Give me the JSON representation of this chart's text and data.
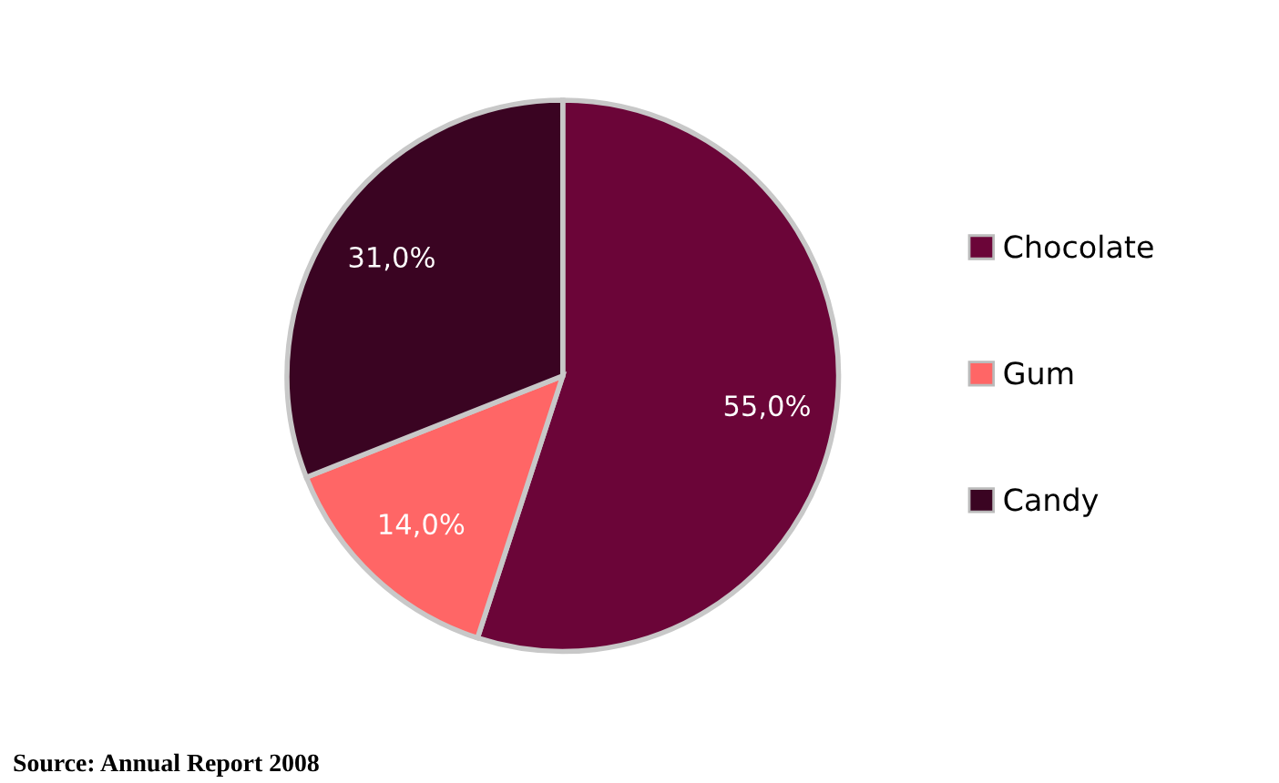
{
  "chart_data": {
    "type": "pie",
    "categories": [
      "Chocolate",
      "Gum",
      "Candy"
    ],
    "values": [
      55,
      14,
      31
    ],
    "colors": [
      "#6b0538",
      "#ff6666",
      "#3a0422"
    ],
    "value_labels": [
      "55,0%",
      "14,0%",
      "31,0%"
    ],
    "legend": "right",
    "annotations": [
      "Source: Annual Report 2008"
    ]
  }
}
